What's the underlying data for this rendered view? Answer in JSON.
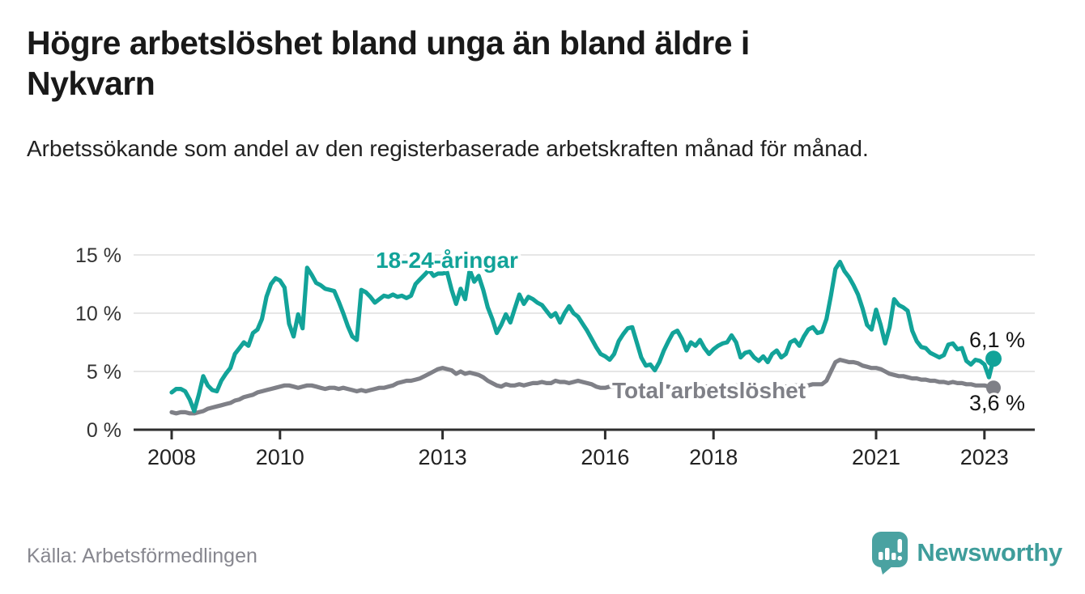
{
  "header": {
    "title_line1": "Högre arbetslöshet bland unga än bland äldre i",
    "title_line2": "Nykvarn",
    "subtitle": "Arbetssökande som andel av den registerbaserade arbetskraften månad för månad."
  },
  "footer": {
    "source": "Källa: Arbetsförmedlingen",
    "brand": "Newsworthy",
    "brand_color": "#3f9d9b",
    "logo_color": "#4aa2a1"
  },
  "chart_data": {
    "type": "line",
    "title": "Högre arbetslöshet bland unga än bland äldre i Nykvarn",
    "xlabel": "",
    "ylabel": "",
    "x_start": "2008-01",
    "x_end": "2023-03",
    "x_interval": "month",
    "ylim": [
      0,
      15
    ],
    "grid": "horizontal",
    "y_tick_labels": [
      "0 %",
      "5 %",
      "10 %",
      "15 %"
    ],
    "x_ticks": [
      {
        "label": "2008",
        "month_index": 0
      },
      {
        "label": "2010",
        "month_index": 24
      },
      {
        "label": "2013",
        "month_index": 60
      },
      {
        "label": "2016",
        "month_index": 96
      },
      {
        "label": "2018",
        "month_index": 120
      },
      {
        "label": "2021",
        "month_index": 156
      },
      {
        "label": "2023",
        "month_index": 180
      }
    ],
    "series": [
      {
        "name": "18-24-åringar",
        "color": "#12a399",
        "end_label": "6,1 %",
        "end_value": 6.1,
        "values": [
          3.2,
          3.5,
          3.5,
          3.3,
          2.6,
          1.6,
          3.0,
          4.6,
          3.8,
          3.4,
          3.3,
          4.2,
          4.8,
          5.3,
          6.5,
          7.0,
          7.5,
          7.2,
          8.3,
          8.6,
          9.5,
          11.4,
          12.5,
          13.0,
          12.8,
          12.2,
          9.1,
          8.0,
          9.9,
          8.7,
          13.9,
          13.3,
          12.6,
          12.4,
          12.1,
          12.0,
          11.9,
          11.0,
          10.0,
          8.9,
          8.0,
          7.7,
          12.0,
          11.8,
          11.4,
          10.9,
          11.2,
          11.5,
          11.4,
          11.6,
          11.4,
          11.5,
          11.3,
          11.5,
          12.5,
          12.9,
          13.3,
          13.7,
          13.2,
          13.4,
          13.4,
          13.5,
          12.0,
          10.8,
          12.1,
          11.2,
          13.7,
          12.7,
          13.2,
          12.0,
          10.5,
          9.5,
          8.3,
          9.0,
          9.9,
          9.2,
          10.4,
          11.6,
          10.8,
          11.4,
          11.2,
          10.9,
          10.7,
          10.2,
          9.7,
          10.0,
          9.2,
          10.0,
          10.6,
          10.0,
          9.7,
          9.1,
          8.5,
          7.8,
          7.1,
          6.5,
          6.3,
          6.0,
          6.5,
          7.6,
          8.2,
          8.7,
          8.8,
          7.5,
          6.2,
          5.5,
          5.6,
          5.1,
          5.8,
          6.8,
          7.6,
          8.3,
          8.5,
          7.8,
          6.8,
          7.5,
          7.2,
          7.7,
          7.0,
          6.5,
          6.9,
          7.2,
          7.4,
          7.5,
          8.1,
          7.5,
          6.2,
          6.6,
          6.7,
          6.2,
          5.9,
          6.3,
          5.8,
          6.5,
          6.8,
          6.2,
          6.5,
          7.5,
          7.7,
          7.2,
          8.0,
          8.6,
          8.8,
          8.3,
          8.4,
          9.5,
          11.5,
          13.8,
          14.4,
          13.6,
          13.1,
          12.4,
          11.6,
          10.4,
          9.0,
          8.6,
          10.3,
          9.0,
          7.4,
          8.8,
          11.2,
          10.7,
          10.5,
          10.2,
          8.5,
          7.6,
          7.1,
          7.0,
          6.6,
          6.4,
          6.2,
          6.4,
          7.3,
          7.4,
          6.9,
          7.0,
          5.9,
          5.6,
          6.0,
          5.9,
          5.6,
          4.5,
          6.1
        ]
      },
      {
        "name": "Total arbetslöshet",
        "color": "#7f8087",
        "end_label": "3,6 %",
        "end_value": 3.6,
        "values": [
          1.5,
          1.4,
          1.5,
          1.5,
          1.4,
          1.4,
          1.5,
          1.6,
          1.8,
          1.9,
          2.0,
          2.1,
          2.2,
          2.3,
          2.5,
          2.6,
          2.8,
          2.9,
          3.0,
          3.2,
          3.3,
          3.4,
          3.5,
          3.6,
          3.7,
          3.8,
          3.8,
          3.7,
          3.6,
          3.7,
          3.8,
          3.8,
          3.7,
          3.6,
          3.5,
          3.6,
          3.6,
          3.5,
          3.6,
          3.5,
          3.4,
          3.3,
          3.4,
          3.3,
          3.4,
          3.5,
          3.6,
          3.6,
          3.7,
          3.8,
          4.0,
          4.1,
          4.2,
          4.2,
          4.3,
          4.4,
          4.6,
          4.8,
          5.0,
          5.2,
          5.3,
          5.2,
          5.1,
          4.8,
          5.0,
          4.8,
          4.9,
          4.8,
          4.7,
          4.5,
          4.2,
          4.0,
          3.8,
          3.7,
          3.9,
          3.8,
          3.8,
          3.9,
          3.8,
          3.9,
          4.0,
          4.0,
          4.1,
          4.0,
          4.0,
          4.2,
          4.1,
          4.1,
          4.0,
          4.1,
          4.2,
          4.1,
          4.0,
          3.9,
          3.7,
          3.6,
          3.6,
          3.7,
          3.7,
          3.8,
          3.8,
          3.7,
          3.8,
          3.7,
          3.7,
          3.6,
          3.6,
          3.6,
          3.6,
          3.7,
          3.7,
          3.6,
          3.6,
          3.7,
          3.8,
          3.7,
          3.6,
          3.6,
          3.7,
          3.7,
          3.7,
          3.7,
          3.8,
          3.7,
          3.7,
          3.8,
          3.7,
          3.7,
          3.6,
          3.6,
          3.6,
          3.7,
          3.7,
          3.7,
          3.6,
          3.6,
          3.7,
          3.7,
          3.8,
          3.8,
          3.8,
          3.8,
          3.9,
          3.9,
          3.9,
          4.2,
          5.0,
          5.8,
          6.0,
          5.9,
          5.8,
          5.8,
          5.7,
          5.5,
          5.4,
          5.3,
          5.3,
          5.2,
          5.0,
          4.8,
          4.7,
          4.6,
          4.6,
          4.5,
          4.4,
          4.4,
          4.3,
          4.3,
          4.2,
          4.2,
          4.1,
          4.1,
          4.0,
          4.1,
          4.0,
          4.0,
          3.9,
          3.9,
          3.8,
          3.8,
          3.8,
          3.7,
          3.6
        ]
      }
    ]
  }
}
